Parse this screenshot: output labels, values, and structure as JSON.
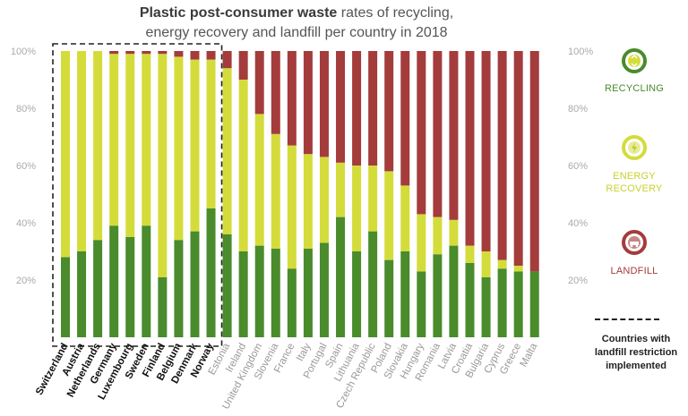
{
  "title": {
    "bold": "Plastic post-consumer waste",
    "line1_rest": "rates of recycling,",
    "line2": "energy recovery and landfill per country in 2018"
  },
  "legend": {
    "recycling": {
      "label": "RECYCLING",
      "color": "#4a8b2c",
      "icon": "recycling-icon"
    },
    "energy_recovery": {
      "label_line1": "ENERGY",
      "label_line2": "RECOVERY",
      "color": "#d4dc3c",
      "icon": "energy-recovery-icon"
    },
    "landfill": {
      "label": "LANDFILL",
      "color": "#a43c3c",
      "icon": "landfill-icon"
    },
    "restriction": {
      "line1": "Countries with",
      "line2": "landfill restriction",
      "line3": "implemented"
    }
  },
  "chart_data": {
    "type": "bar",
    "stacked": true,
    "title": "Plastic post-consumer waste rates of recycling, energy recovery and landfill per country in 2018",
    "xlabel": "",
    "ylabel": "",
    "ylim": [
      0,
      100
    ],
    "y_ticks": [
      "20%",
      "40%",
      "60%",
      "80%",
      "100%"
    ],
    "y_tick_values": [
      20,
      40,
      60,
      80,
      100
    ],
    "grid": false,
    "legend_position": "right",
    "highlight_group": {
      "label": "Countries with landfill restriction implemented",
      "categories": [
        "Switzerland",
        "Austria",
        "Netherlands",
        "Germany",
        "Luxembourg",
        "Sweden",
        "Finland",
        "Belgium",
        "Denmark",
        "Norway"
      ]
    },
    "categories": [
      "Switzerland",
      "Austria",
      "Netherlands",
      "Germany",
      "Luxembourg",
      "Sweden",
      "Finland",
      "Belgium",
      "Denmark",
      "Norway",
      "Estonia",
      "Ireland",
      "United Kingdom",
      "Slovenia",
      "France",
      "Italy",
      "Portugal",
      "Spain",
      "Lithuania",
      "Czech Republic",
      "Poland",
      "Slovakia",
      "Hungary",
      "Romania",
      "Latvia",
      "Croatia",
      "Bulgaria",
      "Cyprus",
      "Greece",
      "Malta"
    ],
    "series": [
      {
        "name": "RECYCLING",
        "color": "#4a8b2c",
        "values": [
          28,
          30,
          34,
          39,
          35,
          39,
          21,
          34,
          37,
          45,
          36,
          30,
          32,
          31,
          24,
          31,
          33,
          42,
          30,
          37,
          27,
          30,
          23,
          29,
          32,
          26,
          21,
          24,
          23,
          23
        ]
      },
      {
        "name": "ENERGY RECOVERY",
        "color": "#d4dc3c",
        "values": [
          72,
          70,
          66,
          60,
          64,
          60,
          78,
          64,
          60,
          52,
          58,
          60,
          46,
          40,
          43,
          33,
          30,
          19,
          30,
          23,
          31,
          23,
          20,
          13,
          9,
          6,
          9,
          3,
          2,
          0
        ]
      },
      {
        "name": "LANDFILL",
        "color": "#a43c3c",
        "values": [
          0,
          0,
          0,
          1,
          1,
          1,
          1,
          2,
          3,
          3,
          6,
          10,
          22,
          29,
          33,
          36,
          37,
          39,
          40,
          40,
          42,
          47,
          57,
          58,
          59,
          68,
          70,
          73,
          75,
          77
        ]
      }
    ]
  }
}
